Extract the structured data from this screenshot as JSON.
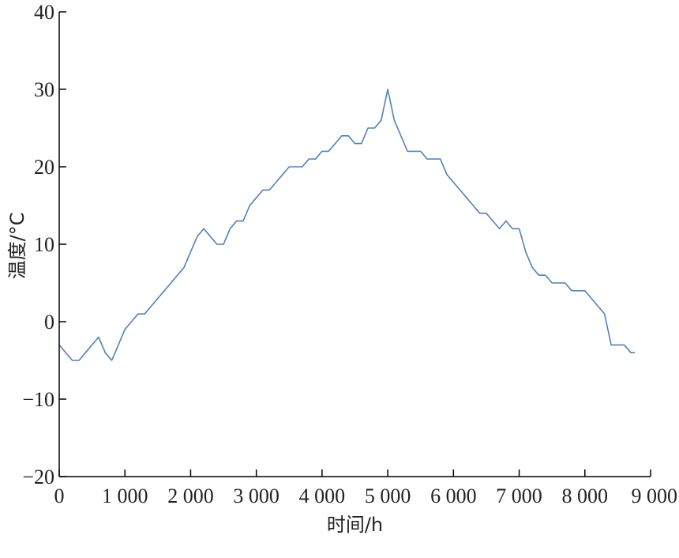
{
  "chart_data": {
    "type": "line",
    "title": "",
    "xlabel": "时间/h",
    "ylabel": "温度/°C",
    "xlim": [
      0,
      9000
    ],
    "ylim": [
      -20,
      40
    ],
    "x_ticks": [
      0,
      1000,
      2000,
      3000,
      4000,
      5000,
      6000,
      7000,
      8000,
      9000
    ],
    "x_tick_labels": [
      "0",
      "1 000",
      "2 000",
      "3 000",
      "4 000",
      "5 000",
      "6 000",
      "7 000",
      "8 000",
      "9 000"
    ],
    "y_ticks": [
      -20,
      -10,
      0,
      10,
      20,
      30,
      40
    ],
    "y_tick_labels": [
      "−20",
      "−10",
      "0",
      "10",
      "20",
      "30",
      "40"
    ],
    "grid": false,
    "legend": "none",
    "line_color": "#4f81bd",
    "series": [
      {
        "x": [
          0,
          100,
          200,
          300,
          400,
          500,
          600,
          700,
          800,
          900,
          1000,
          1100,
          1200,
          1300,
          1400,
          1500,
          1600,
          1700,
          1800,
          1900,
          2000,
          2100,
          2200,
          2300,
          2400,
          2500,
          2600,
          2700,
          2800,
          2900,
          3000,
          3100,
          3200,
          3300,
          3400,
          3500,
          3600,
          3700,
          3800,
          3900,
          4000,
          4100,
          4200,
          4300,
          4400,
          4500,
          4600,
          4700,
          4800,
          4900,
          5000,
          5100,
          5200,
          5300,
          5400,
          5500,
          5600,
          5700,
          5800,
          5900,
          6000,
          6100,
          6200,
          6300,
          6400,
          6500,
          6600,
          6700,
          6800,
          6900,
          7000,
          7100,
          7200,
          7300,
          7400,
          7500,
          7600,
          7700,
          7800,
          7900,
          8000,
          8100,
          8200,
          8300,
          8400,
          8500,
          8600,
          8700,
          8760
        ],
        "values": [
          -3,
          -4,
          -5,
          -5,
          -4,
          -3,
          -2,
          -4,
          -5,
          -3,
          -1,
          0,
          1,
          1,
          2,
          3,
          4,
          5,
          6,
          7,
          9,
          11,
          12,
          11,
          10,
          10,
          12,
          13,
          13,
          15,
          16,
          17,
          17,
          18,
          19,
          20,
          20,
          20,
          21,
          21,
          22,
          22,
          23,
          24,
          24,
          23,
          23,
          25,
          25,
          26,
          30,
          26,
          24,
          22,
          22,
          22,
          21,
          21,
          21,
          19,
          18,
          17,
          16,
          15,
          14,
          14,
          13,
          12,
          13,
          12,
          12,
          9,
          7,
          6,
          6,
          5,
          5,
          5,
          4,
          4,
          4,
          3,
          2,
          1,
          -3,
          -3,
          -3,
          -4,
          -4
        ]
      }
    ]
  }
}
